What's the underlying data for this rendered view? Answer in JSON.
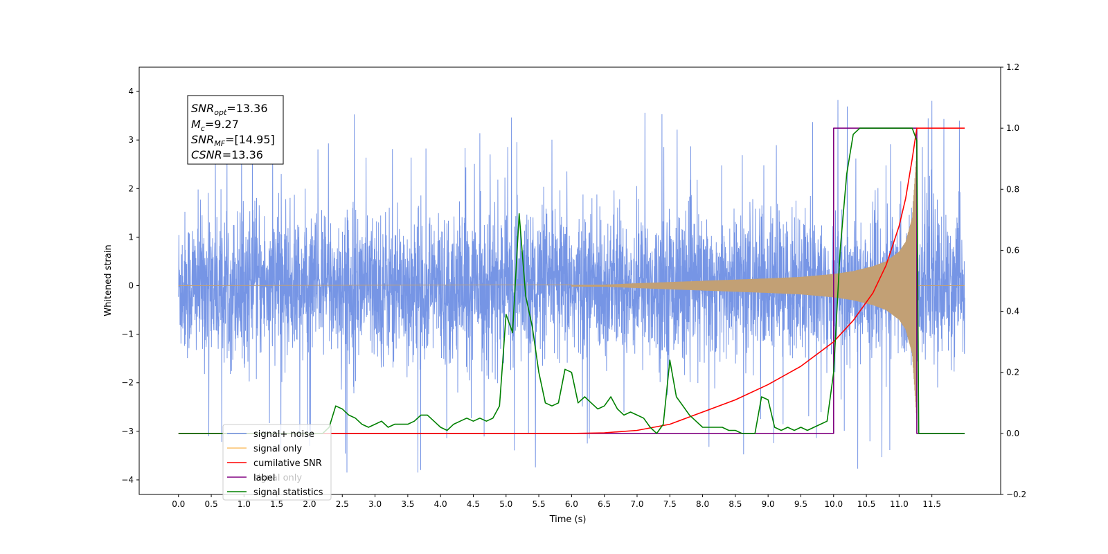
{
  "chart_data": {
    "type": "line",
    "xlabel": "Time (s)",
    "ylabel": "Whitened strain",
    "xlim": [
      -0.6,
      12.55
    ],
    "ylim_left": [
      -4.3,
      4.5
    ],
    "ylim_right": [
      -0.2,
      1.2
    ],
    "x_ticks": [
      "0.0",
      "0.5",
      "1.0",
      "1.5",
      "2.0",
      "2.5",
      "3.0",
      "3.5",
      "4.0",
      "4.5",
      "5.0",
      "5.5",
      "6.0",
      "6.5",
      "7.0",
      "7.5",
      "8.0",
      "8.5",
      "9.0",
      "9.5",
      "10.0",
      "10.5",
      "11.0",
      "11.5"
    ],
    "y_ticks_left": [
      "−4",
      "−3",
      "−2",
      "−1",
      "0",
      "1",
      "2",
      "3",
      "4"
    ],
    "y_ticks_right": [
      "−0.2",
      "0.0",
      "0.2",
      "0.4",
      "0.6",
      "0.8",
      "1.0",
      "1.2"
    ],
    "annotation": {
      "lines": [
        {
          "var": "SNR",
          "sub": "opt",
          "value": "=13.36"
        },
        {
          "var": "M",
          "sub": "c",
          "value": "=9.27"
        },
        {
          "var": "SNR",
          "sub": "MF",
          "value": "=[14.95]"
        },
        {
          "var": "CSNR",
          "sub": "",
          "value": "=13.36"
        }
      ]
    },
    "legend": {
      "placement": "lower-left",
      "entries": [
        {
          "label": "signal+ noise",
          "color": "#6f8fe4"
        },
        {
          "label": "signal only",
          "color": "#fbc16a"
        },
        {
          "label": "cumilative SNR",
          "color": "#ff0000"
        },
        {
          "label": "label",
          "color": "#800080"
        },
        {
          "label": "signal statistics",
          "color": "#008000"
        }
      ],
      "occluded_text": "signal only"
    },
    "series": [
      {
        "name": "signal+ noise",
        "axis": "left",
        "color": "#6f8fe4",
        "description": "whitened noise with amplitude roughly ±2 and spikes to ±4, over 0–12 s",
        "x_range": [
          0.0,
          12.0
        ],
        "typical_extent": [
          -2.0,
          2.0
        ],
        "max_value": 4.1,
        "min_value": -3.85
      },
      {
        "name": "signal only",
        "axis": "left",
        "color": "#c2a075",
        "description": "chirp signal with growing amplitude, ending abruptly near 11.27 s",
        "envelope_x": [
          0,
          6.5,
          7.0,
          8.0,
          9.0,
          9.5,
          10.0,
          10.3,
          10.6,
          10.8,
          11.0,
          11.1,
          11.2,
          11.27
        ],
        "envelope_y": [
          0.0,
          0.02,
          0.05,
          0.1,
          0.15,
          0.18,
          0.24,
          0.3,
          0.4,
          0.5,
          0.7,
          0.9,
          1.4,
          2.8
        ]
      },
      {
        "name": "cumilative SNR",
        "axis": "right",
        "color": "#ff0000",
        "x": [
          0.0,
          6.0,
          6.5,
          7.0,
          7.5,
          8.0,
          8.5,
          9.0,
          9.5,
          10.0,
          10.3,
          10.6,
          10.8,
          11.0,
          11.1,
          11.2,
          11.27,
          12.0
        ],
        "y": [
          0.0,
          0.0,
          0.002,
          0.01,
          0.03,
          0.07,
          0.11,
          0.16,
          0.22,
          0.3,
          0.37,
          0.46,
          0.55,
          0.68,
          0.77,
          0.9,
          1.0,
          1.0
        ]
      },
      {
        "name": "label",
        "axis": "right",
        "color": "#800080",
        "x": [
          0.0,
          10.0,
          10.0,
          11.27,
          11.27,
          12.0
        ],
        "y": [
          0.0,
          0.0,
          1.0,
          1.0,
          0.0,
          0.0
        ]
      },
      {
        "name": "signal statistics",
        "axis": "right",
        "color": "#008000",
        "x": [
          0.0,
          2.2,
          2.3,
          2.4,
          2.5,
          2.6,
          2.7,
          2.8,
          2.9,
          3.0,
          3.1,
          3.2,
          3.3,
          3.4,
          3.5,
          3.6,
          3.7,
          3.8,
          3.9,
          4.0,
          4.1,
          4.2,
          4.3,
          4.4,
          4.5,
          4.6,
          4.7,
          4.8,
          4.9,
          5.0,
          5.1,
          5.2,
          5.3,
          5.4,
          5.5,
          5.6,
          5.7,
          5.8,
          5.9,
          6.0,
          6.1,
          6.2,
          6.3,
          6.4,
          6.5,
          6.6,
          6.7,
          6.8,
          6.9,
          7.0,
          7.1,
          7.2,
          7.3,
          7.4,
          7.5,
          7.6,
          7.7,
          7.8,
          7.9,
          8.0,
          8.1,
          8.2,
          8.3,
          8.4,
          8.5,
          8.6,
          8.7,
          8.8,
          8.9,
          9.0,
          9.1,
          9.2,
          9.3,
          9.4,
          9.5,
          9.6,
          9.7,
          9.8,
          9.9,
          10.0,
          10.1,
          10.2,
          10.3,
          10.4,
          10.6,
          10.8,
          11.0,
          11.1,
          11.2,
          11.27,
          11.3,
          12.0
        ],
        "y": [
          0.0,
          0.0,
          0.02,
          0.09,
          0.08,
          0.06,
          0.05,
          0.03,
          0.02,
          0.03,
          0.04,
          0.02,
          0.03,
          0.03,
          0.03,
          0.04,
          0.06,
          0.06,
          0.04,
          0.02,
          0.01,
          0.03,
          0.04,
          0.05,
          0.04,
          0.05,
          0.04,
          0.05,
          0.09,
          0.39,
          0.33,
          0.72,
          0.45,
          0.35,
          0.2,
          0.1,
          0.09,
          0.1,
          0.21,
          0.2,
          0.1,
          0.12,
          0.1,
          0.08,
          0.09,
          0.12,
          0.08,
          0.06,
          0.07,
          0.06,
          0.05,
          0.02,
          0.0,
          0.03,
          0.24,
          0.12,
          0.09,
          0.06,
          0.04,
          0.02,
          0.02,
          0.02,
          0.02,
          0.01,
          0.01,
          0.0,
          0.0,
          0.0,
          0.12,
          0.11,
          0.02,
          0.01,
          0.02,
          0.01,
          0.02,
          0.01,
          0.02,
          0.03,
          0.04,
          0.2,
          0.6,
          0.85,
          0.98,
          1.0,
          1.0,
          1.0,
          1.0,
          1.0,
          1.0,
          0.96,
          0.0,
          0.0
        ]
      }
    ]
  }
}
